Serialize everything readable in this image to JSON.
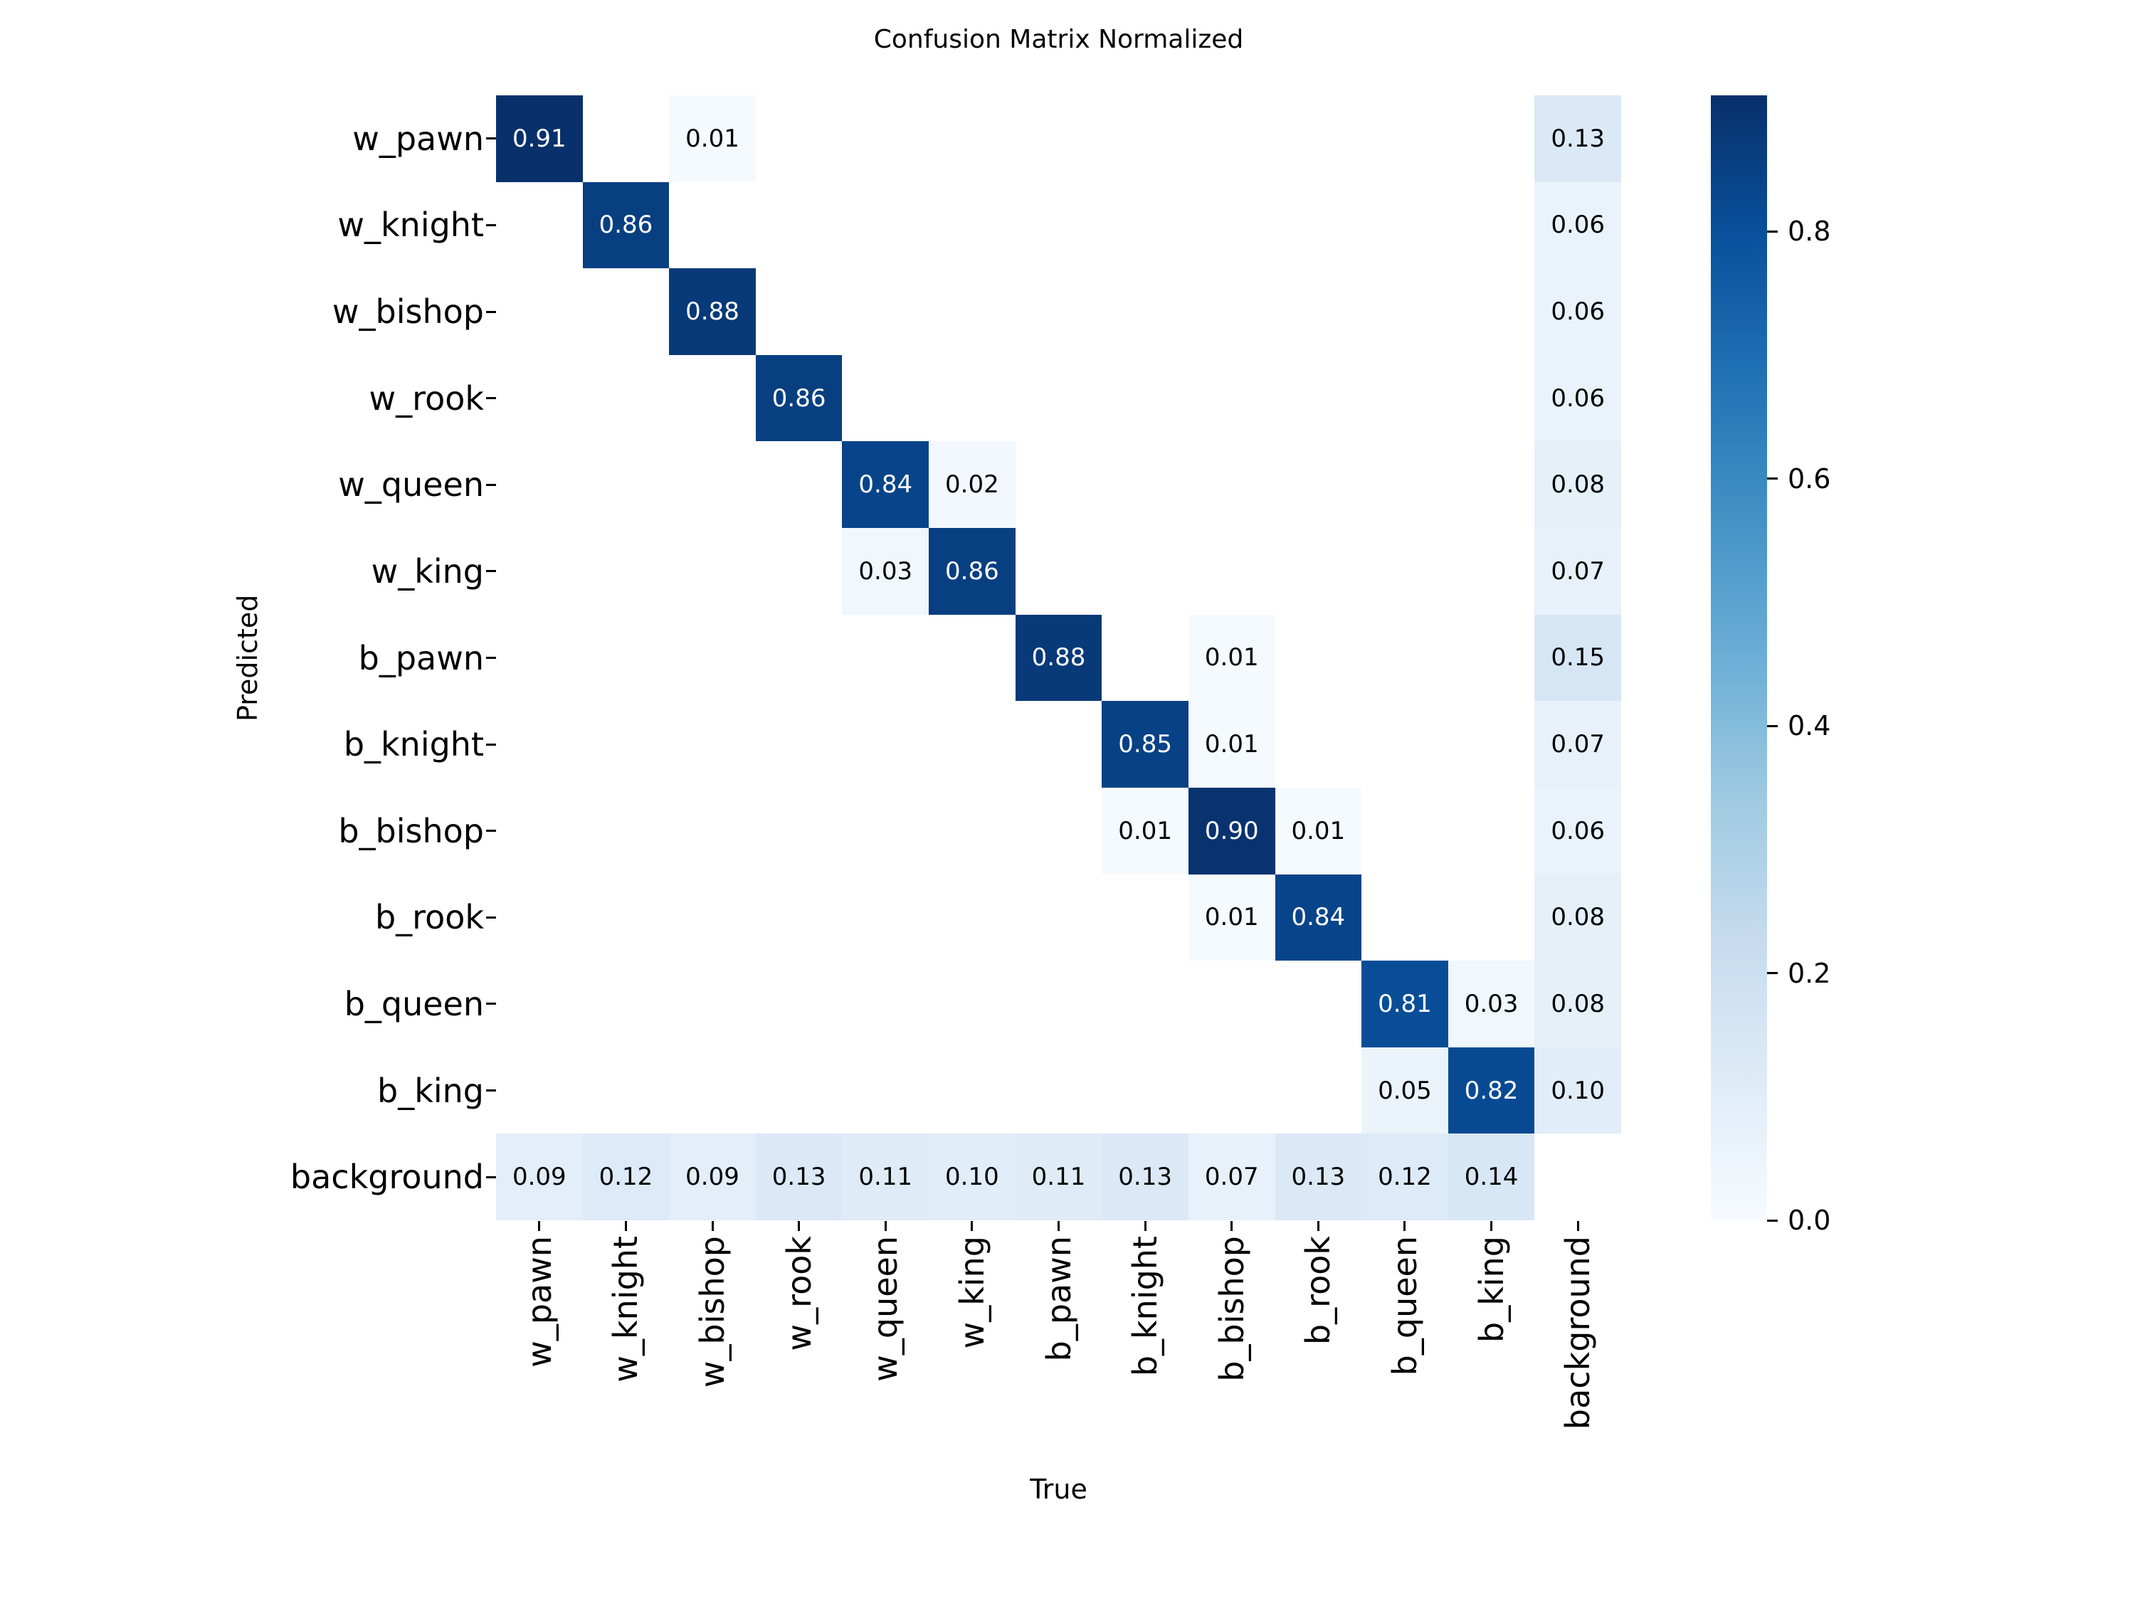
{
  "title": "Confusion Matrix Normalized",
  "chart_data": {
    "type": "heatmap",
    "title": "Confusion Matrix Normalized",
    "xlabel": "True",
    "ylabel": "Predicted",
    "x_categories": [
      "w_pawn",
      "w_knight",
      "w_bishop",
      "w_rook",
      "w_queen",
      "w_king",
      "b_pawn",
      "b_knight",
      "b_bishop",
      "b_rook",
      "b_queen",
      "b_king",
      "background"
    ],
    "y_categories": [
      "w_pawn",
      "w_knight",
      "w_bishop",
      "w_rook",
      "w_queen",
      "w_king",
      "b_pawn",
      "b_knight",
      "b_bishop",
      "b_rook",
      "b_queen",
      "b_king",
      "background"
    ],
    "matrix": [
      [
        0.91,
        null,
        0.01,
        null,
        null,
        null,
        null,
        null,
        null,
        null,
        null,
        null,
        0.13
      ],
      [
        null,
        0.86,
        null,
        null,
        null,
        null,
        null,
        null,
        null,
        null,
        null,
        null,
        0.06
      ],
      [
        null,
        null,
        0.88,
        null,
        null,
        null,
        null,
        null,
        null,
        null,
        null,
        null,
        0.06
      ],
      [
        null,
        null,
        null,
        0.86,
        null,
        null,
        null,
        null,
        null,
        null,
        null,
        null,
        0.06
      ],
      [
        null,
        null,
        null,
        null,
        0.84,
        0.02,
        null,
        null,
        null,
        null,
        null,
        null,
        0.08
      ],
      [
        null,
        null,
        null,
        null,
        0.03,
        0.86,
        null,
        null,
        null,
        null,
        null,
        null,
        0.07
      ],
      [
        null,
        null,
        null,
        null,
        null,
        null,
        0.88,
        null,
        0.01,
        null,
        null,
        null,
        0.15
      ],
      [
        null,
        null,
        null,
        null,
        null,
        null,
        null,
        0.85,
        0.01,
        null,
        null,
        null,
        0.07
      ],
      [
        null,
        null,
        null,
        null,
        null,
        null,
        null,
        0.01,
        0.9,
        0.01,
        null,
        null,
        0.06
      ],
      [
        null,
        null,
        null,
        null,
        null,
        null,
        null,
        null,
        0.01,
        0.84,
        null,
        null,
        0.08
      ],
      [
        null,
        null,
        null,
        null,
        null,
        null,
        null,
        null,
        null,
        null,
        0.81,
        0.03,
        0.08
      ],
      [
        null,
        null,
        null,
        null,
        null,
        null,
        null,
        null,
        null,
        null,
        0.05,
        0.82,
        0.1
      ],
      [
        0.09,
        0.12,
        0.09,
        0.13,
        0.11,
        0.1,
        0.11,
        0.13,
        0.07,
        0.13,
        0.12,
        0.14,
        null
      ]
    ],
    "annotation_format": "0.00",
    "colormap": "Blues",
    "colormap_stops": [
      "#f7fbff",
      "#deebf7",
      "#c6dbef",
      "#9ecae1",
      "#6baed6",
      "#4292c6",
      "#2171b5",
      "#08519c",
      "#08306b"
    ],
    "vmin": 0,
    "vmax": 0.91,
    "colorbar_ticks": [
      0.0,
      0.2,
      0.4,
      0.6,
      0.8
    ],
    "colorbar_tick_format": "0.0",
    "legend_position": "right-colorbar",
    "grid": false,
    "empty_cell_color": "#ffffff",
    "annotation_color_dark_cells": "#ffffff",
    "annotation_color_light_cells": "#000000"
  }
}
